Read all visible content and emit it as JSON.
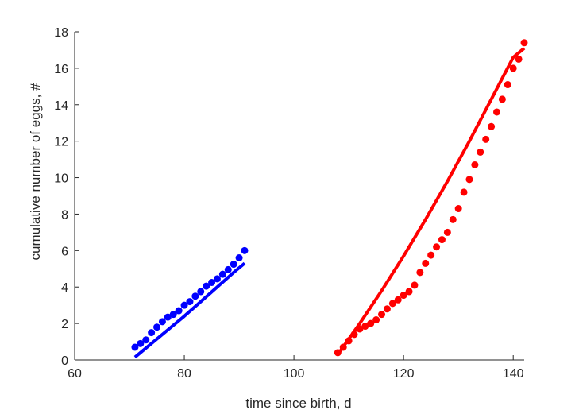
{
  "chart_data": {
    "type": "scatter",
    "xlabel": "time since birth, d",
    "ylabel": "cumulative number of eggs, #",
    "xlim": [
      60,
      142
    ],
    "ylim": [
      0,
      18
    ],
    "xticks": [
      60,
      80,
      100,
      120,
      140
    ],
    "yticks": [
      0,
      2,
      4,
      6,
      8,
      10,
      12,
      14,
      16,
      18
    ],
    "grid": false,
    "series": [
      {
        "kind": "points",
        "color": "#0000ff",
        "x": [
          71,
          72,
          73,
          74,
          75,
          76,
          77,
          78,
          79,
          80,
          81,
          82,
          83,
          84,
          85,
          86,
          87,
          88,
          89,
          90,
          91
        ],
        "y": [
          0.7,
          0.9,
          1.1,
          1.5,
          1.8,
          2.1,
          2.35,
          2.5,
          2.7,
          3.0,
          3.2,
          3.5,
          3.75,
          4.05,
          4.25,
          4.45,
          4.7,
          4.95,
          5.25,
          5.6,
          6.0
        ]
      },
      {
        "kind": "line",
        "color": "#0000ff",
        "x": [
          71,
          74,
          77,
          80,
          83,
          86,
          89,
          91
        ],
        "y": [
          0.15,
          0.9,
          1.65,
          2.4,
          3.2,
          4.0,
          4.8,
          5.3
        ]
      },
      {
        "kind": "points",
        "color": "#ff0000",
        "x": [
          108,
          109,
          110,
          111,
          112,
          113,
          114,
          115,
          116,
          117,
          118,
          119,
          120,
          121,
          122,
          123,
          124,
          125,
          126,
          127,
          128,
          129,
          130,
          131,
          132,
          133,
          134,
          135,
          136,
          137,
          138,
          139,
          140,
          141,
          142
        ],
        "y": [
          0.4,
          0.7,
          1.05,
          1.4,
          1.7,
          1.85,
          2.0,
          2.2,
          2.5,
          2.8,
          3.1,
          3.3,
          3.55,
          3.75,
          4.1,
          4.8,
          5.3,
          5.75,
          6.2,
          6.6,
          7.0,
          7.7,
          8.3,
          9.2,
          9.9,
          10.7,
          11.4,
          12.1,
          12.8,
          13.6,
          14.3,
          15.1,
          16.0,
          16.5,
          17.4
        ]
      },
      {
        "kind": "line",
        "color": "#ff0000",
        "x": [
          108,
          112,
          116,
          120,
          124,
          128,
          132,
          136,
          140,
          142
        ],
        "y": [
          0.3,
          2.0,
          3.8,
          5.7,
          7.7,
          9.8,
          12.0,
          14.3,
          16.6,
          17.1
        ]
      }
    ]
  }
}
